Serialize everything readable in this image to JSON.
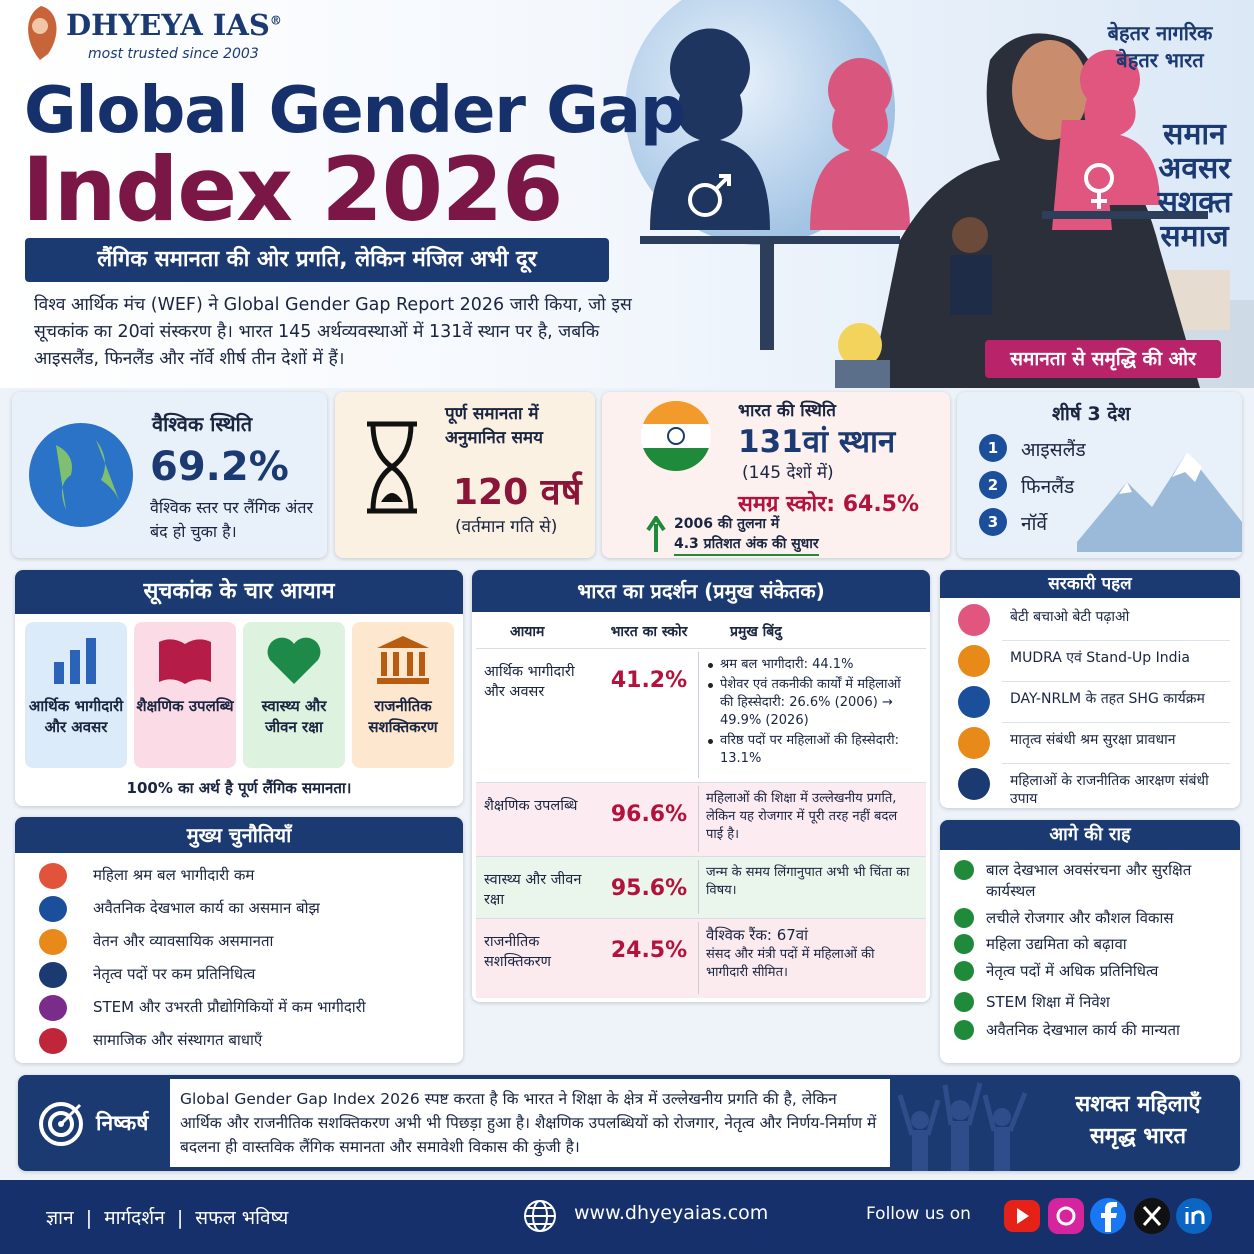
{
  "brand": {
    "name": "DHYEYA IAS",
    "reg": "®",
    "tagline": "most trusted since 2003"
  },
  "slogan": [
    "बेहतर नागरिक",
    "बेहतर भारत"
  ],
  "title": {
    "line1": "Global Gender Gap",
    "line2": "Index 2026"
  },
  "subtitle": "लैंगिक समानता की ओर प्रगति, लेकिन मंजिल अभी दूर",
  "intro": "विश्व आर्थिक मंच (WEF) ने Global Gender Gap Report 2026 जारी किया, जो इस सूचकांक का 20वां संस्करण है। भारत 145 अर्थव्यवस्थाओं में 131वें स्थान पर है, जबकि आइसलैंड, फिनलैंड और नॉर्वे शीर्ष तीन देशों में हैं।",
  "hero": {
    "tags": [
      "समान",
      "अवसर",
      "सशक्त",
      "समाज"
    ],
    "banner": "समानता से समृद्धि की ओर"
  },
  "stats": {
    "global": {
      "title": "वैश्विक स्थिति",
      "value": "69.2%",
      "note": "वैश्विक स्तर पर लैंगिक अंतर बंद हो चुका है।"
    },
    "time": {
      "title": "पूर्ण समानता में अनुमानित समय",
      "value": "120 वर्ष",
      "note": "(वर्तमान गति से)"
    },
    "india": {
      "title": "भारत की स्थिति",
      "rank": "131वां स्थान",
      "of": "(145 देशों में)",
      "score": "समग्र स्कोर: 64.5%",
      "change": [
        "2006 की तुलना में",
        "4.3 प्रतिशत अंक की सुधार"
      ]
    },
    "top3": {
      "title": "शीर्ष 3 देश",
      "items": [
        {
          "rank": "1",
          "name": "आइसलैंड"
        },
        {
          "rank": "2",
          "name": "फिनलैंड"
        },
        {
          "rank": "3",
          "name": "नॉर्वे"
        }
      ]
    }
  },
  "dimensions": {
    "title": "सूचकांक के चार आयाम",
    "items": [
      "आर्थिक भागीदारी और अवसर",
      "शैक्षणिक उपलब्धि",
      "स्वास्थ्य और जीवन रक्षा",
      "राजनीतिक सशक्तिकरण"
    ],
    "note": "100% का अर्थ है पूर्ण लैंगिक समानता।"
  },
  "challenges": {
    "title": "मुख्य चुनौतियाँ",
    "items": [
      "महिला श्रम बल भागीदारी कम",
      "अवैतनिक देखभाल कार्य का असमान बोझ",
      "वेतन और व्यावसायिक असमानता",
      "नेतृत्व पदों पर कम प्रतिनिधित्व",
      "STEM और उभरती प्रौद्योगिकियों में कम भागीदारी",
      "सामाजिक और संस्थागत बाधाएँ"
    ]
  },
  "performance": {
    "title": "भारत का प्रदर्शन (प्रमुख संकेतक)",
    "headers": [
      "आयाम",
      "भारत का स्कोर",
      "प्रमुख बिंदु"
    ],
    "rows": [
      {
        "dimension": "आर्थिक भागीदारी और अवसर",
        "score": "41.2%",
        "bullets": [
          "श्रम बल भागीदारी: 44.1%",
          "पेशेवर एवं तकनीकी कार्यों में महिलाओं की हिस्सेदारी: 26.6% (2006) → 49.9% (2026)",
          "वरिष्ठ पदों पर महिलाओं की हिस्सेदारी: 13.1%"
        ]
      },
      {
        "dimension": "शैक्षणिक उपलब्धि",
        "score": "96.6%",
        "points": [
          "महिलाओं की शिक्षा में उल्लेखनीय प्रगति, लेकिन यह रोजगार में पूरी तरह नहीं बदल पाई है।"
        ]
      },
      {
        "dimension": "स्वास्थ्य और जीवन रक्षा",
        "score": "95.6%",
        "points": [
          "जन्म के समय लिंगानुपात अभी भी चिंता का विषय।"
        ]
      },
      {
        "dimension": "राजनीतिक सशक्तिकरण",
        "score": "24.5%",
        "points": [
          "वैश्विक रैंक: 67वां",
          "संसद और मंत्री पदों में महिलाओं की भागीदारी सीमित।"
        ]
      }
    ]
  },
  "government": {
    "title": "सरकारी पहल",
    "items": [
      "बेटी बचाओ बेटी पढ़ाओ",
      "MUDRA एवं Stand-Up India",
      "DAY-NRLM के तहत SHG कार्यक्रम",
      "मातृत्व संबंधी श्रम सुरक्षा प्रावधान",
      "महिलाओं के राजनीतिक आरक्षण संबंधी उपाय"
    ]
  },
  "way_forward": {
    "title": "आगे की राह",
    "items": [
      "बाल देखभाल अवसंरचना और सुरक्षित कार्यस्थल",
      "लचीले रोजगार और कौशल विकास",
      "महिला उद्यमिता को बढ़ावा",
      "नेतृत्व पदों में अधिक प्रतिनिधित्व",
      "STEM शिक्षा में निवेश",
      "अवैतनिक देखभाल कार्य की मान्यता"
    ]
  },
  "conclusion": {
    "label": "निष्कर्ष",
    "text": "Global Gender Gap Index 2026 स्पष्ट करता है कि भारत ने शिक्षा के क्षेत्र में उल्लेखनीय प्रगति की है, लेकिन आर्थिक और राजनीतिक सशक्तिकरण अभी भी पिछड़ा हुआ है। शैक्षणिक उपलब्धियों को रोजगार, नेतृत्व और निर्णय-निर्माण में बदलना ही वास्तविक लैंगिक समानता और समावेशी विकास की कुंजी है।",
    "tagline": [
      "सशक्त महिलाएँ",
      "समृद्ध भारत"
    ]
  },
  "footer": {
    "motto": "ज्ञान  |  मार्गदर्शन  |  सफल भविष्य",
    "website": "www.dhyeyaias.com",
    "follow": "Follow us on"
  }
}
